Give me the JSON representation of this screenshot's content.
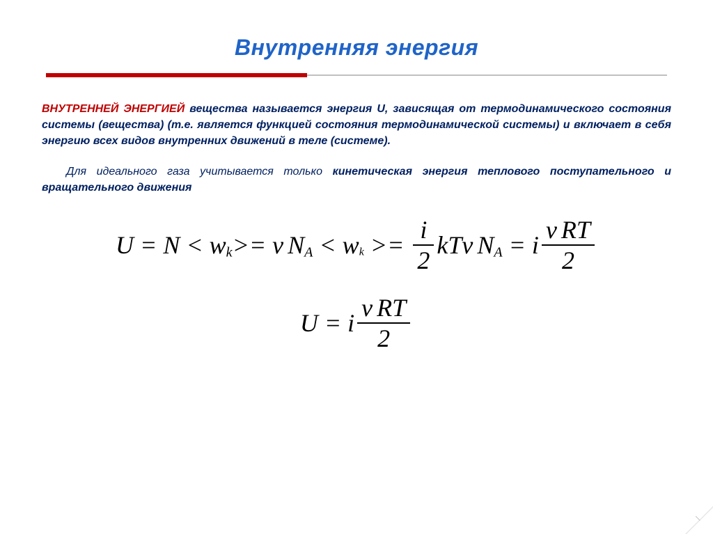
{
  "title": "Внутренняя энергия",
  "colors": {
    "title": "#1f64c8",
    "lead": "#c00000",
    "body": "#002060",
    "divider_main": "#c00000",
    "divider_thin": "#c0c0c0",
    "background": "#ffffff",
    "formula": "#000000"
  },
  "typography": {
    "body_font": "Verdana",
    "formula_font": "Times New Roman",
    "title_fontsize": 32,
    "body_fontsize": 16,
    "formula_fontsize": 36
  },
  "paragraph1": {
    "lead": "ВНУТРЕННЕЙ ЭНЕРГИЕЙ",
    "rest": " вещества называется энергия U, зависящая от термодинамического состояния системы (вещества) (т.е. является функцией состояния термодинамической системы) и включает в себя энергию всех видов внутренних движений в теле (системе)."
  },
  "paragraph2": {
    "plain_a": "Для идеального газа учитывается только ",
    "bold": "кинетическая энергия теплового поступательного и вращательного движения",
    "plain_b": ""
  },
  "formula_main": {
    "seg1_a": "U",
    "seg1_eq": " = ",
    "seg1_b": "N",
    "seg1_lt": " < ",
    "seg1_w": "w",
    "seg1_wsub": "k",
    "seg1_gt": ">",
    "seg2_eq": "= ",
    "seg2_nu": "ν",
    "seg2_N": "N",
    "seg2_Asub": "A",
    "seg2_lt": " < ",
    "seg2_w": "w",
    "seg2_wsub": "k",
    "seg2_gt": " >",
    "seg3_eq": "= ",
    "frac1_num_i": "i",
    "frac1_den": "2",
    "seg3_tail_k": "k",
    "seg3_tail_T": "T",
    "seg3_tail_nu": "ν",
    "seg3_tail_N": "N",
    "seg3_tail_Asub": "A",
    "seg4_eq": " = ",
    "seg4_i": "i",
    "frac2_num_nu": "ν",
    "frac2_num_R": "R",
    "frac2_num_T": "T",
    "frac2_den": "2"
  },
  "formula_final": {
    "U": "U",
    "eq": " = ",
    "i": "i",
    "num_nu": "ν",
    "num_R": "R",
    "num_T": "T",
    "den": "2"
  }
}
